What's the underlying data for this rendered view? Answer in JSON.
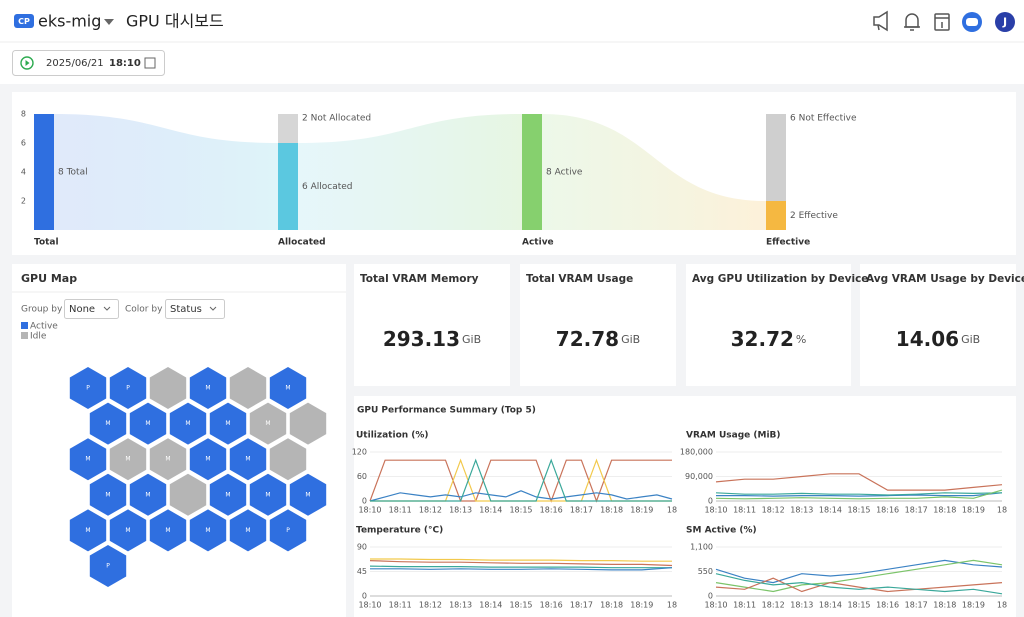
{
  "header": {
    "badge": "CP",
    "cluster": "eks-mig",
    "title": "GPU 대시보드",
    "user_initial": "J"
  },
  "toolbar": {
    "date": "2025/06/21",
    "time": "18:10"
  },
  "allocation_chart": {
    "type": "sankey",
    "ylim": [
      0,
      8
    ],
    "yticks": [
      2,
      4,
      6,
      8
    ],
    "stages": [
      {
        "name": "Total",
        "segments": [
          {
            "value": 8,
            "label": "8 Total",
            "color": "#2f6fe0"
          }
        ]
      },
      {
        "name": "Allocated",
        "segments": [
          {
            "value": 6,
            "label": "6 Allocated",
            "color": "#5bc8e0"
          },
          {
            "value": 2,
            "label": "2 Not Allocated",
            "color": "#d6d6d6"
          }
        ]
      },
      {
        "name": "Active",
        "segments": [
          {
            "value": 8,
            "label": "8 Active",
            "color": "#86d06e"
          }
        ]
      },
      {
        "name": "Effective",
        "segments": [
          {
            "value": 2,
            "label": "2 Effective",
            "color": "#f5b841"
          },
          {
            "value": 6,
            "label": "6 Not Effective",
            "color": "#cfcfcf"
          }
        ]
      }
    ]
  },
  "gpu_map": {
    "title": "GPU Map",
    "group_by_label": "Group by",
    "group_by_value": "None",
    "color_by_label": "Color by",
    "color_by_value": "Status",
    "legend": [
      {
        "name": "Active",
        "color": "#2f6fe0"
      },
      {
        "name": "Idle",
        "color": "#b5b5b5"
      }
    ],
    "hexes": [
      {
        "label": "P",
        "status": "Active"
      },
      {
        "label": "P",
        "status": "Active"
      },
      {
        "status": "Idle"
      },
      {
        "label": "M",
        "status": "Active"
      },
      {
        "status": "Idle"
      },
      {
        "label": "M",
        "status": "Active"
      },
      {
        "label": "M",
        "status": "Active"
      },
      {
        "label": "M",
        "status": "Active"
      },
      {
        "label": "M",
        "status": "Active"
      },
      {
        "label": "M",
        "status": "Active"
      },
      {
        "label": "M",
        "status": "Idle"
      },
      {
        "status": "Idle"
      },
      {
        "label": "M",
        "status": "Active"
      },
      {
        "label": "M",
        "status": "Idle"
      },
      {
        "label": "M",
        "status": "Idle"
      },
      {
        "label": "M",
        "status": "Active"
      },
      {
        "label": "M",
        "status": "Active"
      },
      {
        "status": "Idle"
      },
      {
        "label": "M",
        "status": "Active"
      },
      {
        "label": "M",
        "status": "Active"
      },
      {
        "status": "Idle"
      },
      {
        "label": "M",
        "status": "Active"
      },
      {
        "label": "M",
        "status": "Active"
      },
      {
        "label": "M",
        "status": "Active"
      },
      {
        "label": "M",
        "status": "Active"
      },
      {
        "label": "M",
        "status": "Active"
      },
      {
        "label": "M",
        "status": "Active"
      },
      {
        "label": "M",
        "status": "Active"
      },
      {
        "label": "M",
        "status": "Active"
      },
      {
        "label": "P",
        "status": "Active"
      },
      {
        "label": "P",
        "status": "Active"
      }
    ]
  },
  "stat_cards": [
    {
      "title": "Total VRAM Memory",
      "value": "293.13",
      "unit": "GiB"
    },
    {
      "title": "Total VRAM Usage",
      "value": "72.78",
      "unit": "GiB"
    },
    {
      "title": "Avg GPU Utilization by Device",
      "value": "32.72",
      "unit": "%"
    },
    {
      "title": "Avg VRAM Usage by Device",
      "value": "14.06",
      "unit": "GiB"
    }
  ],
  "performance": {
    "title": "GPU Performance Summary (Top 5)",
    "charts": [
      {
        "type": "line",
        "title": "Utilization (%)",
        "categories": [
          "18:10",
          null,
          "18:11",
          null,
          "18:12",
          null,
          "18:13",
          null,
          "18:14",
          null,
          "18:15",
          null,
          "18:16",
          null,
          "18:17",
          null,
          "18:18",
          null,
          "18:19",
          null,
          "18"
        ],
        "ylim": [
          0,
          120
        ],
        "yticks": [
          0,
          60,
          120
        ],
        "series": [
          {
            "color": "#c9735a",
            "values": [
              0,
              100,
              100,
              100,
              100,
              100,
              0,
              0,
              100,
              100,
              100,
              100,
              0,
              100,
              100,
              0,
              100,
              100,
              100,
              100,
              100
            ]
          },
          {
            "color": "#f2c94c",
            "values": [
              0,
              0,
              0,
              0,
              0,
              0,
              100,
              0,
              0,
              0,
              0,
              0,
              0,
              0,
              0,
              100,
              0,
              0,
              0,
              0,
              0
            ]
          },
          {
            "color": "#3b82c4",
            "values": [
              0,
              10,
              20,
              15,
              10,
              15,
              10,
              20,
              15,
              10,
              25,
              10,
              5,
              10,
              15,
              20,
              15,
              5,
              10,
              15,
              5
            ]
          },
          {
            "color": "#3aa89a",
            "values": [
              0,
              0,
              0,
              0,
              0,
              0,
              0,
              100,
              0,
              0,
              0,
              0,
              100,
              0,
              0,
              0,
              0,
              0,
              0,
              0,
              0
            ]
          }
        ]
      },
      {
        "type": "line",
        "title": "VRAM Usage (MiB)",
        "categories": [
          "18:10",
          "18:11",
          "18:12",
          "18:13",
          "18:14",
          "18:15",
          "18:16",
          "18:17",
          "18:18",
          "18:19",
          "18"
        ],
        "ylim": [
          0,
          180000
        ],
        "yticks": [
          0,
          {
            "value": 90000,
            "label": "90,000"
          },
          {
            "value": 180000,
            "label": "180,000"
          }
        ],
        "series": [
          {
            "color": "#c9735a",
            "values": [
              70000,
              80000,
              80000,
              90000,
              100000,
              100000,
              40000,
              40000,
              40000,
              50000,
              60000
            ]
          },
          {
            "color": "#3b82c4",
            "values": [
              20000,
              20000,
              18000,
              20000,
              20000,
              18000,
              20000,
              22000,
              20000,
              20000,
              30000
            ]
          },
          {
            "color": "#3aa89a",
            "values": [
              30000,
              25000,
              25000,
              28000,
              25000,
              25000,
              22000,
              25000,
              30000,
              28000,
              30000
            ]
          },
          {
            "color": "#7cc46a",
            "values": [
              10000,
              8000,
              10000,
              12000,
              10000,
              8000,
              10000,
              10000,
              15000,
              10000,
              40000
            ]
          }
        ]
      },
      {
        "type": "line",
        "title": "Temperature (°C)",
        "categories": [
          "18:10",
          "18:11",
          "18:12",
          "18:13",
          "18:14",
          "18:15",
          "18:16",
          "18:17",
          "18:18",
          "18:19",
          "18"
        ],
        "ylim": [
          0,
          90
        ],
        "yticks": [
          0,
          45,
          90
        ],
        "series": [
          {
            "color": "#f2c94c",
            "values": [
              68,
              68,
              67,
              67,
              66,
              66,
              66,
              65,
              65,
              64,
              64
            ]
          },
          {
            "color": "#c9735a",
            "values": [
              65,
              63,
              62,
              62,
              61,
              60,
              60,
              59,
              58,
              58,
              56
            ]
          },
          {
            "color": "#3aa89a",
            "values": [
              55,
              54,
              54,
              54,
              53,
              53,
              53,
              53,
              52,
              52,
              52
            ]
          },
          {
            "color": "#3b82c4",
            "values": [
              50,
              50,
              49,
              50,
              49,
              49,
              50,
              49,
              48,
              48,
              52
            ]
          }
        ]
      },
      {
        "type": "line",
        "title": "SM Active (%)",
        "categories": [
          "18:10",
          "18:11",
          "18:12",
          "18:13",
          "18:14",
          "18:15",
          "18:16",
          "18:17",
          "18:18",
          "18:19",
          "18"
        ],
        "ylim": [
          0,
          1100
        ],
        "yticks": [
          0,
          550,
          {
            "value": 1100,
            "label": "1,100"
          }
        ],
        "series": [
          {
            "color": "#3b82c4",
            "values": [
              600,
              400,
              300,
              500,
              450,
              500,
              600,
              700,
              800,
              700,
              650
            ]
          },
          {
            "color": "#7cc46a",
            "values": [
              300,
              200,
              100,
              250,
              300,
              400,
              500,
              600,
              700,
              800,
              700
            ]
          },
          {
            "color": "#c9735a",
            "values": [
              200,
              150,
              400,
              100,
              300,
              200,
              100,
              150,
              200,
              250,
              300
            ]
          },
          {
            "color": "#3aa89a",
            "values": [
              500,
              350,
              250,
              300,
              200,
              150,
              200,
              150,
              100,
              150,
              50
            ]
          }
        ]
      }
    ]
  }
}
